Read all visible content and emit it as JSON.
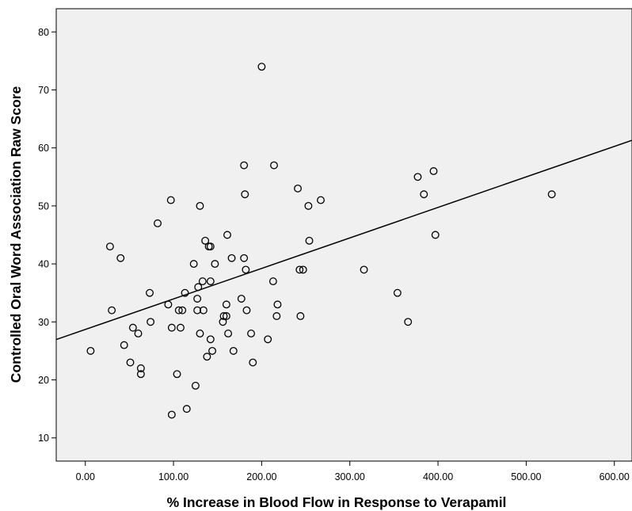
{
  "chart_data": {
    "type": "scatter",
    "title": "",
    "xlabel": "% Increase in Blood Flow in Response to Verapamil",
    "ylabel": "Controlled Oral Word Association Raw Score",
    "xlim": [
      -33,
      620
    ],
    "ylim": [
      6,
      84
    ],
    "x_ticks": [
      0,
      100,
      200,
      300,
      400,
      500,
      600
    ],
    "x_tick_labels": [
      "0.00",
      "100.00",
      "200.00",
      "300.00",
      "400.00",
      "500.00",
      "600.00"
    ],
    "y_ticks": [
      10,
      20,
      30,
      40,
      50,
      60,
      70,
      80
    ],
    "y_tick_labels": [
      "10",
      "20",
      "30",
      "40",
      "50",
      "60",
      "70",
      "80"
    ],
    "grid": false,
    "background": "#f0f0f0",
    "marker": "open-circle",
    "fit_line": {
      "type": "linear",
      "intercept": 28.7,
      "slope": 0.0526
    },
    "points": [
      {
        "x": 6,
        "y": 25
      },
      {
        "x": 28,
        "y": 43
      },
      {
        "x": 30,
        "y": 32
      },
      {
        "x": 40,
        "y": 41
      },
      {
        "x": 44,
        "y": 26
      },
      {
        "x": 51,
        "y": 23
      },
      {
        "x": 54,
        "y": 29
      },
      {
        "x": 60,
        "y": 28
      },
      {
        "x": 63,
        "y": 22
      },
      {
        "x": 63,
        "y": 21
      },
      {
        "x": 73,
        "y": 35
      },
      {
        "x": 74,
        "y": 30
      },
      {
        "x": 82,
        "y": 47
      },
      {
        "x": 94,
        "y": 33
      },
      {
        "x": 97,
        "y": 51
      },
      {
        "x": 98,
        "y": 29
      },
      {
        "x": 98,
        "y": 14
      },
      {
        "x": 104,
        "y": 21
      },
      {
        "x": 106,
        "y": 32
      },
      {
        "x": 108,
        "y": 29
      },
      {
        "x": 110,
        "y": 32
      },
      {
        "x": 113,
        "y": 35
      },
      {
        "x": 115,
        "y": 15
      },
      {
        "x": 123,
        "y": 40
      },
      {
        "x": 125,
        "y": 19
      },
      {
        "x": 127,
        "y": 34
      },
      {
        "x": 127,
        "y": 32
      },
      {
        "x": 128,
        "y": 36
      },
      {
        "x": 130,
        "y": 28
      },
      {
        "x": 130,
        "y": 50
      },
      {
        "x": 133,
        "y": 37
      },
      {
        "x": 134,
        "y": 32
      },
      {
        "x": 136,
        "y": 44
      },
      {
        "x": 138,
        "y": 24
      },
      {
        "x": 140,
        "y": 43
      },
      {
        "x": 142,
        "y": 43
      },
      {
        "x": 142,
        "y": 37
      },
      {
        "x": 142,
        "y": 27
      },
      {
        "x": 144,
        "y": 25
      },
      {
        "x": 147,
        "y": 40
      },
      {
        "x": 156,
        "y": 30
      },
      {
        "x": 157,
        "y": 31
      },
      {
        "x": 160,
        "y": 31
      },
      {
        "x": 160,
        "y": 33
      },
      {
        "x": 161,
        "y": 45
      },
      {
        "x": 162,
        "y": 28
      },
      {
        "x": 166,
        "y": 41
      },
      {
        "x": 168,
        "y": 25
      },
      {
        "x": 177,
        "y": 34
      },
      {
        "x": 180,
        "y": 57
      },
      {
        "x": 180,
        "y": 41
      },
      {
        "x": 181,
        "y": 52
      },
      {
        "x": 182,
        "y": 39
      },
      {
        "x": 183,
        "y": 32
      },
      {
        "x": 188,
        "y": 28
      },
      {
        "x": 190,
        "y": 23
      },
      {
        "x": 200,
        "y": 74
      },
      {
        "x": 207,
        "y": 27
      },
      {
        "x": 213,
        "y": 37
      },
      {
        "x": 214,
        "y": 57
      },
      {
        "x": 217,
        "y": 31
      },
      {
        "x": 218,
        "y": 33
      },
      {
        "x": 241,
        "y": 53
      },
      {
        "x": 243,
        "y": 39
      },
      {
        "x": 244,
        "y": 31
      },
      {
        "x": 247,
        "y": 39
      },
      {
        "x": 253,
        "y": 50
      },
      {
        "x": 254,
        "y": 44
      },
      {
        "x": 267,
        "y": 51
      },
      {
        "x": 316,
        "y": 39
      },
      {
        "x": 354,
        "y": 35
      },
      {
        "x": 366,
        "y": 30
      },
      {
        "x": 377,
        "y": 55
      },
      {
        "x": 384,
        "y": 52
      },
      {
        "x": 395,
        "y": 56
      },
      {
        "x": 397,
        "y": 45
      },
      {
        "x": 529,
        "y": 52
      }
    ]
  }
}
